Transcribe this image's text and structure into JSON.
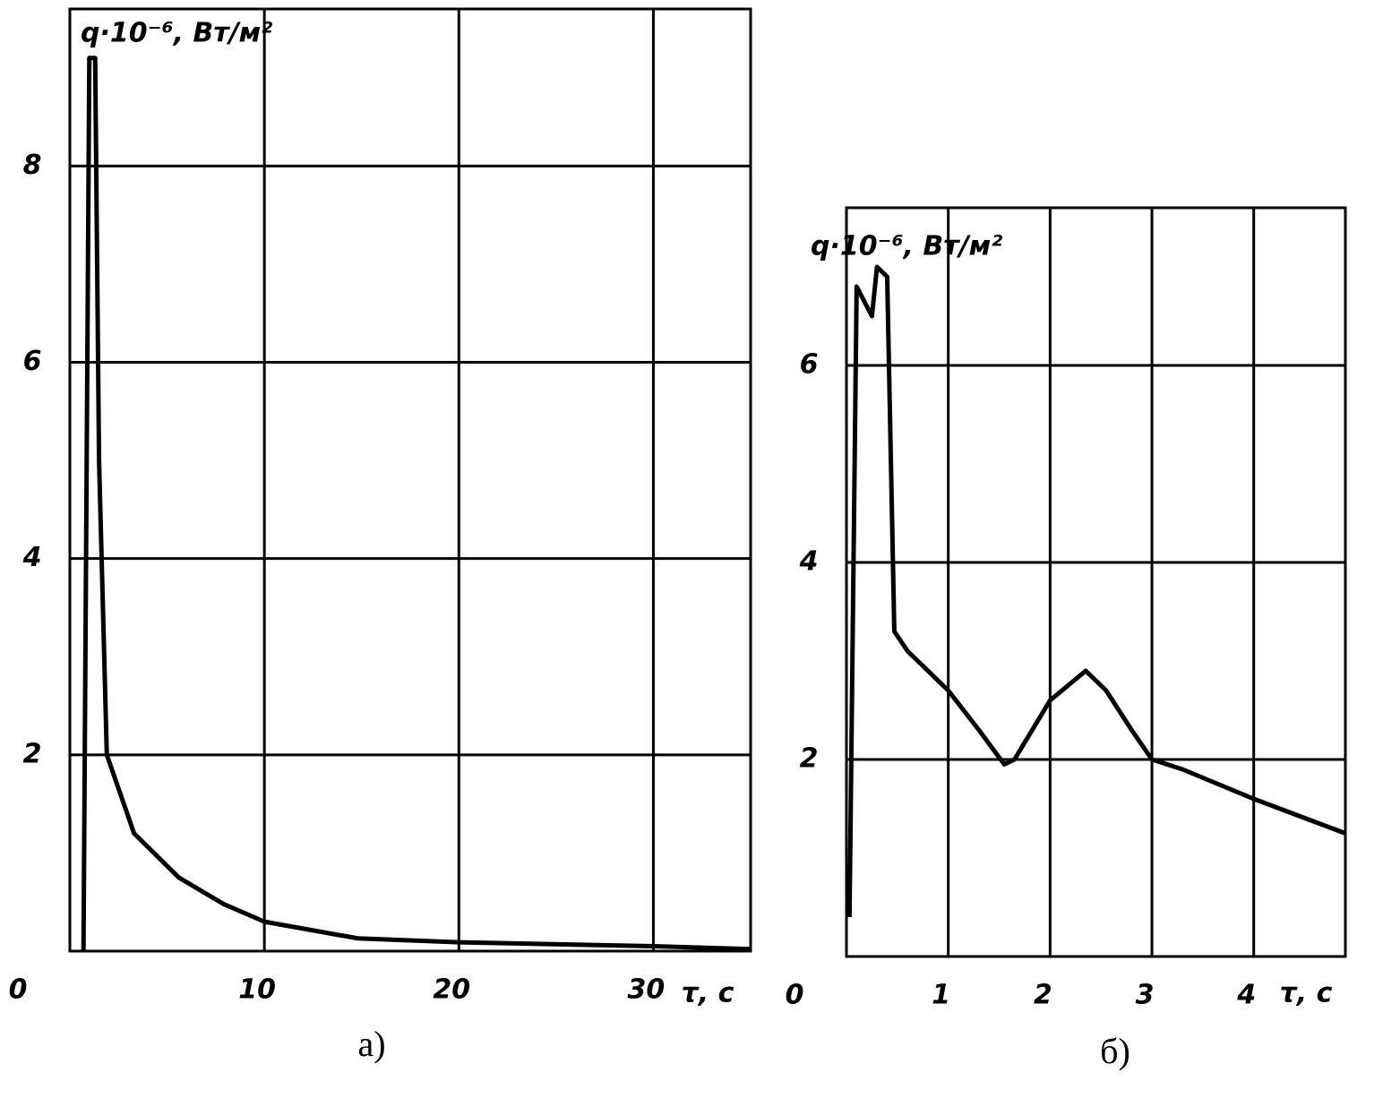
{
  "chart_data": [
    {
      "type": "line",
      "title": "а)",
      "y_label": "q·10⁻⁶, Вт/м²",
      "x_label": "τ, с",
      "xlim": [
        0,
        35
      ],
      "ylim": [
        0,
        9.6
      ],
      "xticks": [
        0,
        10,
        20,
        30
      ],
      "yticks": [
        2,
        4,
        6,
        8
      ],
      "grid": true,
      "series": [
        {
          "color": "#000000",
          "x": [
            0.7,
            1.0,
            1.3,
            1.5,
            1.9,
            3.3,
            5.6,
            7.9,
            10,
            14.8,
            20,
            30,
            35
          ],
          "values": [
            0,
            9.1,
            9.1,
            5.0,
            2.0,
            1.2,
            0.75,
            0.48,
            0.3,
            0.13,
            0.09,
            0.05,
            0.02
          ]
        }
      ]
    },
    {
      "type": "line",
      "title": "б)",
      "y_label": "q·10⁻⁶, Вт/м²",
      "x_label": "τ, с",
      "xlim": [
        0,
        4.9
      ],
      "ylim": [
        0,
        7.6
      ],
      "xticks": [
        0,
        1,
        2,
        3,
        4
      ],
      "yticks": [
        2,
        4,
        6
      ],
      "grid": true,
      "series": [
        {
          "color": "#000000",
          "x": [
            0.03,
            0.1,
            0.25,
            0.3,
            0.4,
            0.47,
            0.6,
            1.0,
            1.3,
            1.55,
            1.65,
            2.0,
            2.35,
            2.55,
            2.8,
            3.0,
            3.3,
            4.0,
            4.9
          ],
          "values": [
            0.4,
            6.8,
            6.5,
            7.0,
            6.9,
            3.3,
            3.1,
            2.7,
            2.3,
            1.95,
            2.0,
            2.6,
            2.9,
            2.7,
            2.3,
            2.0,
            1.9,
            1.6,
            1.25
          ]
        }
      ]
    }
  ]
}
